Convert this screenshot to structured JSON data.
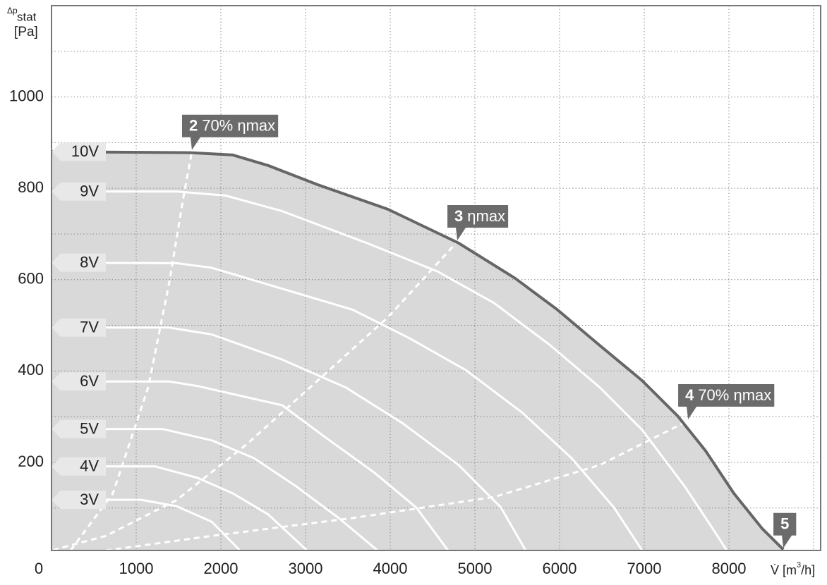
{
  "chart_data": {
    "type": "line",
    "y_label": {
      "symbol": "Δp",
      "sub": "stat",
      "unit": "[Pa]"
    },
    "x_label": {
      "symbol": "V̇",
      "unit_pre": "[m",
      "sup": "3",
      "unit_post": "/h]"
    },
    "xlim": [
      0,
      9083
    ],
    "ylim": [
      7,
      1200
    ],
    "xticks": [
      0,
      1000,
      2000,
      3000,
      4000,
      5000,
      6000,
      7000,
      8000
    ],
    "yticks": [
      200,
      400,
      600,
      800,
      1000
    ],
    "xgrid": [
      1000,
      2000,
      3000,
      4000,
      5000,
      6000,
      7000,
      8000,
      9000
    ],
    "ygrid": [
      100,
      200,
      300,
      400,
      500,
      600,
      700,
      800,
      900,
      1000,
      1100
    ],
    "grid": true,
    "fill_color": "#d9d9d9",
    "series": [
      {
        "name": "10V",
        "color": "#666666",
        "x": [
          0,
          1642,
          2142,
          2558,
          3142,
          3975,
          4808,
          5475,
          5975,
          6475,
          6975,
          7392,
          7725,
          8058,
          8392,
          8642
        ],
        "values": [
          880,
          878,
          873,
          850,
          808,
          754,
          680,
          603,
          534,
          456,
          379,
          302,
          225,
          132,
          55,
          9
        ]
      },
      {
        "name": "9V",
        "color": "#ffffff",
        "x": [
          0,
          1475,
          2058,
          2725,
          3725,
          4558,
          5225,
          5892,
          6475,
          6975,
          7475,
          7808,
          7975
        ],
        "values": [
          793,
          793,
          784,
          750,
          680,
          618,
          549,
          456,
          364,
          271,
          148,
          55,
          7
        ]
      },
      {
        "name": "8V",
        "color": "#ffffff",
        "x": [
          0,
          1475,
          1892,
          2725,
          3558,
          4225,
          4892,
          5558,
          6142,
          6642,
          6975
        ],
        "values": [
          637,
          636,
          626,
          580,
          534,
          472,
          402,
          309,
          209,
          101,
          7
        ]
      },
      {
        "name": "7V",
        "color": "#ffffff",
        "x": [
          0,
          1392,
          1892,
          2725,
          3475,
          4142,
          4808,
          5308,
          5600
        ],
        "values": [
          495,
          495,
          480,
          425,
          364,
          286,
          194,
          101,
          7
        ]
      },
      {
        "name": "6V",
        "color": "#ffffff",
        "x": [
          0,
          1392,
          1725,
          2725,
          3225,
          3808,
          4308,
          4683
        ],
        "values": [
          377,
          377,
          367,
          325,
          256,
          178,
          101,
          7
        ]
      },
      {
        "name": "5V",
        "color": "#ffffff",
        "x": [
          0,
          1308,
          1892,
          2392,
          2892,
          3392,
          3850
        ],
        "values": [
          273,
          273,
          248,
          209,
          147,
          78,
          7
        ]
      },
      {
        "name": "4V",
        "color": "#ffffff",
        "x": [
          0,
          1225,
          1725,
          2142,
          2558,
          3017
        ],
        "values": [
          191,
          191,
          166,
          132,
          86,
          7
        ]
      },
      {
        "name": "3V",
        "color": "#ffffff",
        "x": [
          0,
          1058,
          1475,
          1892,
          2225
        ],
        "values": [
          118,
          118,
          104,
          70,
          7
        ]
      }
    ],
    "efficiency_lines": [
      {
        "color": "#ffffff",
        "x": [
          225,
          725,
          1142,
          1392,
          1558,
          1658
        ],
        "values": [
          7,
          132,
          364,
          595,
          781,
          881
        ]
      },
      {
        "color": "#ffffff",
        "x": [
          17,
          642,
          1475,
          2308,
          3142,
          3975,
          4792
        ],
        "values": [
          8,
          39,
          117,
          240,
          379,
          518,
          683
        ]
      },
      {
        "color": "#ffffff",
        "x": [
          642,
          1892,
          3558,
          5225,
          6475,
          7517
        ],
        "values": [
          7,
          39,
          78,
          124,
          194,
          291
        ]
      }
    ],
    "annotations": [
      {
        "number": "2",
        "text": "70% ηmax"
      },
      {
        "number": "3",
        "text": "ηmax"
      },
      {
        "number": "4",
        "text": "70% ηmax"
      },
      {
        "number": "5",
        "text": ""
      }
    ]
  }
}
